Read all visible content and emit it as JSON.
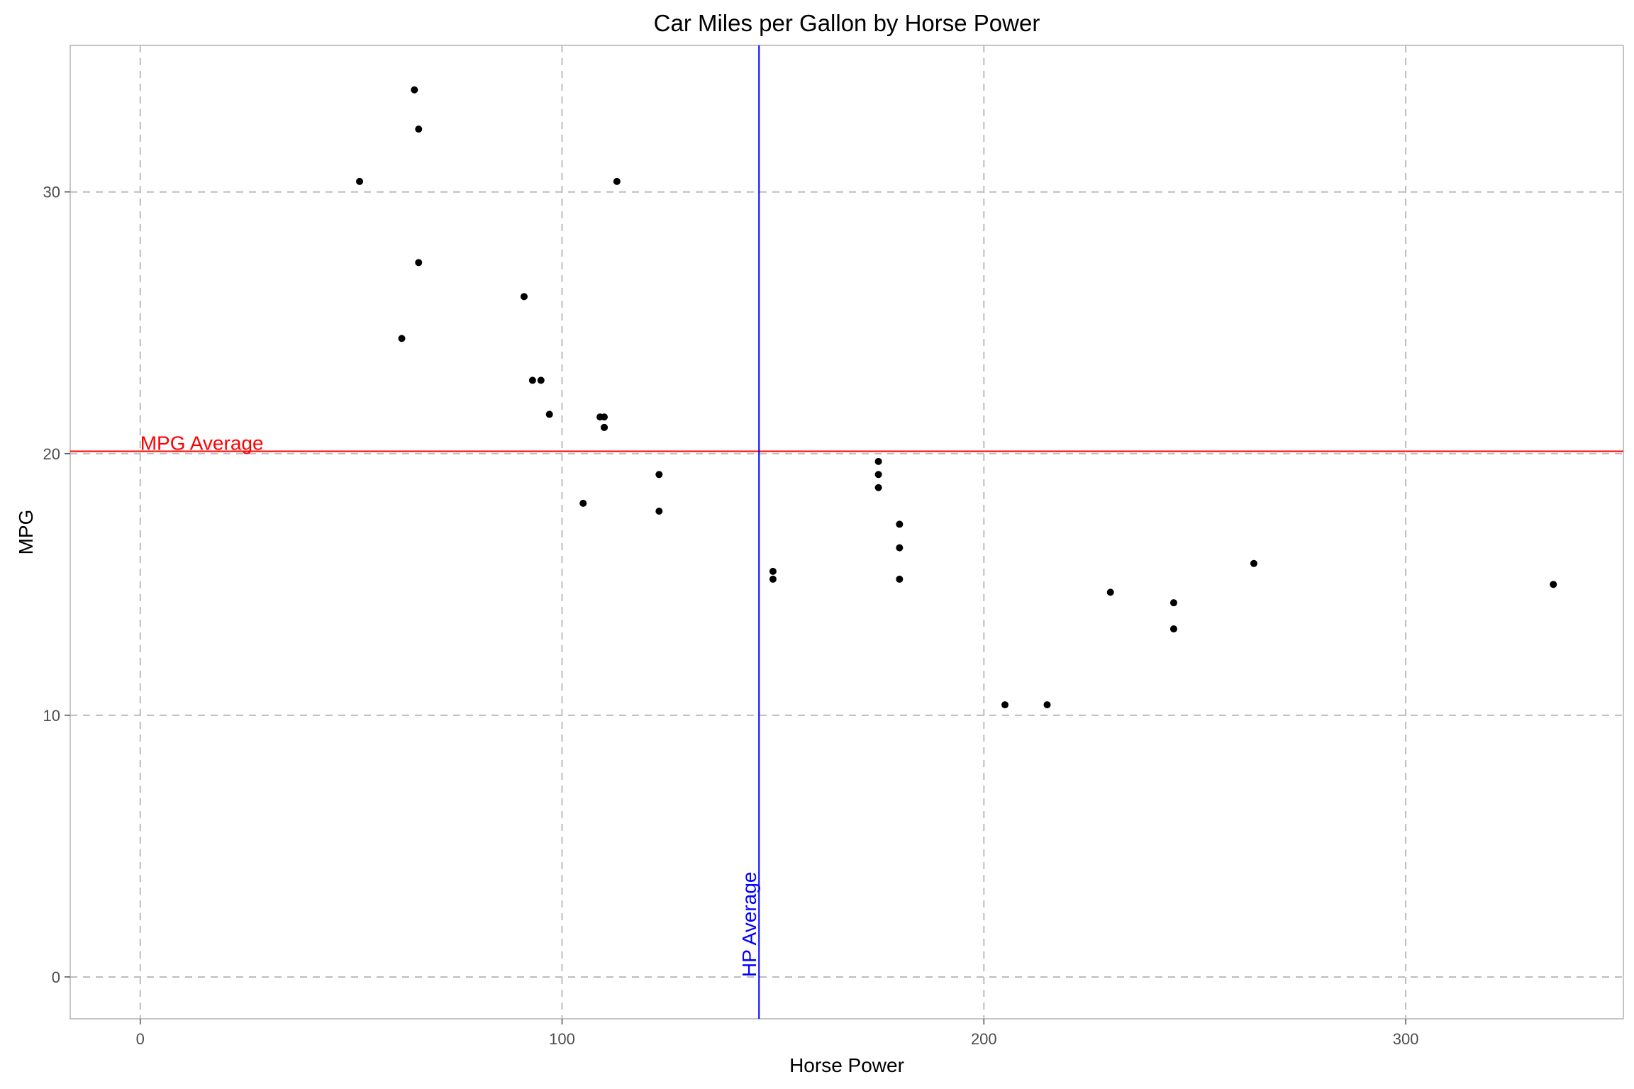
{
  "chart_data": {
    "type": "scatter",
    "title": "Car Miles per Gallon by Horse Power",
    "xlabel": "Horse Power",
    "ylabel": "MPG",
    "xlim": [
      -16.6,
      351.6
    ],
    "ylim": [
      -1.6,
      35.6
    ],
    "x_ticks": [
      0,
      100,
      200,
      300
    ],
    "y_ticks": [
      0,
      10,
      20,
      30
    ],
    "grid": true,
    "point_color": "#000000",
    "points": [
      {
        "x": 110,
        "y": 21.0
      },
      {
        "x": 110,
        "y": 21.0
      },
      {
        "x": 93,
        "y": 22.8
      },
      {
        "x": 110,
        "y": 21.4
      },
      {
        "x": 175,
        "y": 18.7
      },
      {
        "x": 105,
        "y": 18.1
      },
      {
        "x": 245,
        "y": 14.3
      },
      {
        "x": 62,
        "y": 24.4
      },
      {
        "x": 95,
        "y": 22.8
      },
      {
        "x": 123,
        "y": 19.2
      },
      {
        "x": 123,
        "y": 17.8
      },
      {
        "x": 180,
        "y": 16.4
      },
      {
        "x": 180,
        "y": 17.3
      },
      {
        "x": 180,
        "y": 15.2
      },
      {
        "x": 205,
        "y": 10.4
      },
      {
        "x": 215,
        "y": 10.4
      },
      {
        "x": 230,
        "y": 14.7
      },
      {
        "x": 66,
        "y": 32.4
      },
      {
        "x": 52,
        "y": 30.4
      },
      {
        "x": 65,
        "y": 33.9
      },
      {
        "x": 97,
        "y": 21.5
      },
      {
        "x": 150,
        "y": 15.5
      },
      {
        "x": 150,
        "y": 15.2
      },
      {
        "x": 245,
        "y": 13.3
      },
      {
        "x": 175,
        "y": 19.2
      },
      {
        "x": 66,
        "y": 27.3
      },
      {
        "x": 91,
        "y": 26.0
      },
      {
        "x": 113,
        "y": 30.4
      },
      {
        "x": 264,
        "y": 15.8
      },
      {
        "x": 175,
        "y": 19.7
      },
      {
        "x": 335,
        "y": 15.0
      },
      {
        "x": 109,
        "y": 21.4
      }
    ],
    "annotations": {
      "mpg_average": {
        "label": "MPG Average",
        "value": 20.09,
        "color": "#ff0000"
      },
      "hp_average": {
        "label": "HP Average",
        "value": 146.69,
        "color": "#0000ff"
      }
    }
  }
}
